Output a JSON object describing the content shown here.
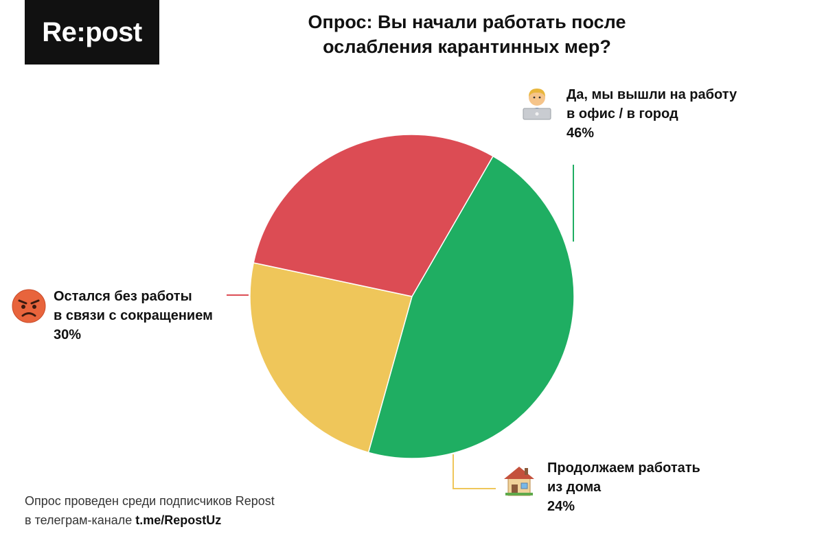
{
  "brand": {
    "logo_text": "Re:post"
  },
  "title": {
    "line1": "Опрос: Вы начали работать после",
    "line2": "ослабления карантинных мер?"
  },
  "chart_data": {
    "type": "pie",
    "start_angle_deg": -60,
    "direction": "clockwise",
    "slices": [
      {
        "label_line1": "Да, мы вышли на работу",
        "label_line2": "в офис / в город",
        "value": 46,
        "value_label": "46%",
        "color": "#1fae62",
        "icon": "man-with-laptop-icon"
      },
      {
        "label_line1": "Продолжаем работать",
        "label_line2": "из дома",
        "value": 24,
        "value_label": "24%",
        "color": "#efc65a",
        "icon": "house-icon"
      },
      {
        "label_line1": "Остался без работы",
        "label_line2": "в связи с сокращением",
        "value": 30,
        "value_label": "30%",
        "color": "#dc4c54",
        "icon": "angry-face-icon"
      }
    ]
  },
  "footer": {
    "line1": "Опрос проведен среди подписчиков Repost",
    "line2_prefix": "в телеграм-канале ",
    "line2_link": "t.me/RepostUz"
  }
}
